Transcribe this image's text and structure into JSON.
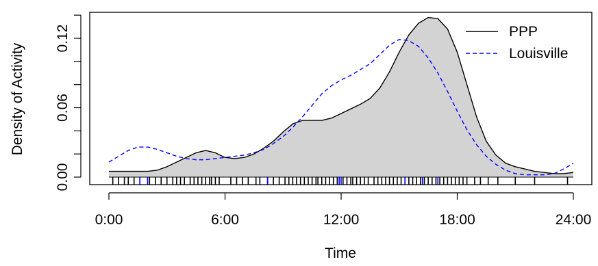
{
  "chart_data": {
    "type": "line",
    "title": "",
    "xlabel": "Time",
    "ylabel": "Density of Activity",
    "xlim": [
      0,
      24
    ],
    "ylim": [
      0,
      0.14
    ],
    "x_ticks": [
      {
        "value": 0,
        "label": "0:00"
      },
      {
        "value": 6,
        "label": "6:00"
      },
      {
        "value": 12,
        "label": "12:00"
      },
      {
        "value": 18,
        "label": "18:00"
      },
      {
        "value": 24,
        "label": "24:00"
      }
    ],
    "y_ticks": [
      {
        "value": 0,
        "label": "0.00"
      },
      {
        "value": 0.06,
        "label": "0.06"
      },
      {
        "value": 0.12,
        "label": "0.12"
      }
    ],
    "legend": {
      "position": "top-right"
    },
    "series": [
      {
        "name": "PPP",
        "style": "solid",
        "color": "#000000",
        "filled": true,
        "fill_color": "#d3d3d3",
        "x": [
          0,
          0.5,
          1,
          1.5,
          2,
          2.5,
          3,
          3.5,
          4,
          4.5,
          5,
          5.5,
          6,
          6.5,
          7,
          7.5,
          8,
          8.5,
          9,
          9.5,
          10,
          10.5,
          11,
          11.5,
          12,
          12.5,
          13,
          13.5,
          14,
          14.5,
          15,
          15.5,
          16,
          16.5,
          17,
          17.5,
          18,
          18.5,
          19,
          19.5,
          20,
          20.5,
          21,
          21.5,
          22,
          22.5,
          23,
          23.5,
          24
        ],
        "y": [
          0.005,
          0.005,
          0.005,
          0.005,
          0.005,
          0.006,
          0.009,
          0.013,
          0.017,
          0.021,
          0.023,
          0.021,
          0.017,
          0.016,
          0.017,
          0.02,
          0.025,
          0.031,
          0.039,
          0.046,
          0.049,
          0.049,
          0.049,
          0.051,
          0.055,
          0.059,
          0.063,
          0.068,
          0.077,
          0.091,
          0.108,
          0.123,
          0.133,
          0.138,
          0.137,
          0.128,
          0.108,
          0.08,
          0.052,
          0.031,
          0.019,
          0.012,
          0.009,
          0.007,
          0.005,
          0.004,
          0.003,
          0.003,
          0.004
        ]
      },
      {
        "name": "Louisville",
        "style": "dashed",
        "color": "#0000ff",
        "filled": false,
        "x": [
          0,
          0.5,
          1,
          1.5,
          2,
          2.5,
          3,
          3.5,
          4,
          4.5,
          5,
          5.5,
          6,
          6.5,
          7,
          7.5,
          8,
          8.5,
          9,
          9.5,
          10,
          10.5,
          11,
          11.5,
          12,
          12.5,
          13,
          13.5,
          14,
          14.5,
          15,
          15.5,
          16,
          16.5,
          17,
          17.5,
          18,
          18.5,
          19,
          19.5,
          20,
          20.5,
          21,
          21.5,
          22,
          22.5,
          23,
          23.5,
          24
        ],
        "y": [
          0.013,
          0.018,
          0.023,
          0.026,
          0.026,
          0.024,
          0.021,
          0.018,
          0.016,
          0.015,
          0.015,
          0.016,
          0.017,
          0.018,
          0.019,
          0.021,
          0.024,
          0.029,
          0.035,
          0.043,
          0.052,
          0.062,
          0.072,
          0.079,
          0.084,
          0.088,
          0.093,
          0.098,
          0.106,
          0.114,
          0.119,
          0.118,
          0.113,
          0.103,
          0.09,
          0.074,
          0.057,
          0.041,
          0.028,
          0.018,
          0.011,
          0.006,
          0.003,
          0.002,
          0.002,
          0.002,
          0.003,
          0.007,
          0.012
        ]
      }
    ],
    "rug": {
      "PPP": [
        0.2,
        0.5,
        0.8,
        1.0,
        1.3,
        1.6,
        2.1,
        2.4,
        2.7,
        3.0,
        3.3,
        3.5,
        3.7,
        3.9,
        4.2,
        4.4,
        4.6,
        4.8,
        5.0,
        5.2,
        5.3,
        5.5,
        5.7,
        6.3,
        6.6,
        6.9,
        7.2,
        7.6,
        7.8,
        8.2,
        8.5,
        8.8,
        9.1,
        9.3,
        9.5,
        9.7,
        9.9,
        10.1,
        10.3,
        10.5,
        10.7,
        10.8,
        11.0,
        11.2,
        11.4,
        11.6,
        11.8,
        12.1,
        12.3,
        12.5,
        12.6,
        12.8,
        13.0,
        13.2,
        13.4,
        13.7,
        13.9,
        14.1,
        14.3,
        14.5,
        14.7,
        14.9,
        15.1,
        15.3,
        15.5,
        15.7,
        15.9,
        16.1,
        16.3,
        16.5,
        16.7,
        16.9,
        17.1,
        17.3,
        17.5,
        17.7,
        17.9,
        18.1,
        18.3,
        18.5,
        18.9,
        19.2,
        19.6,
        20.1,
        21.0,
        22.0,
        23.7
      ],
      "Louisville": [
        1.6,
        2.0,
        8.2,
        11.9,
        12.0,
        15.3,
        16.2,
        17.0
      ]
    }
  }
}
